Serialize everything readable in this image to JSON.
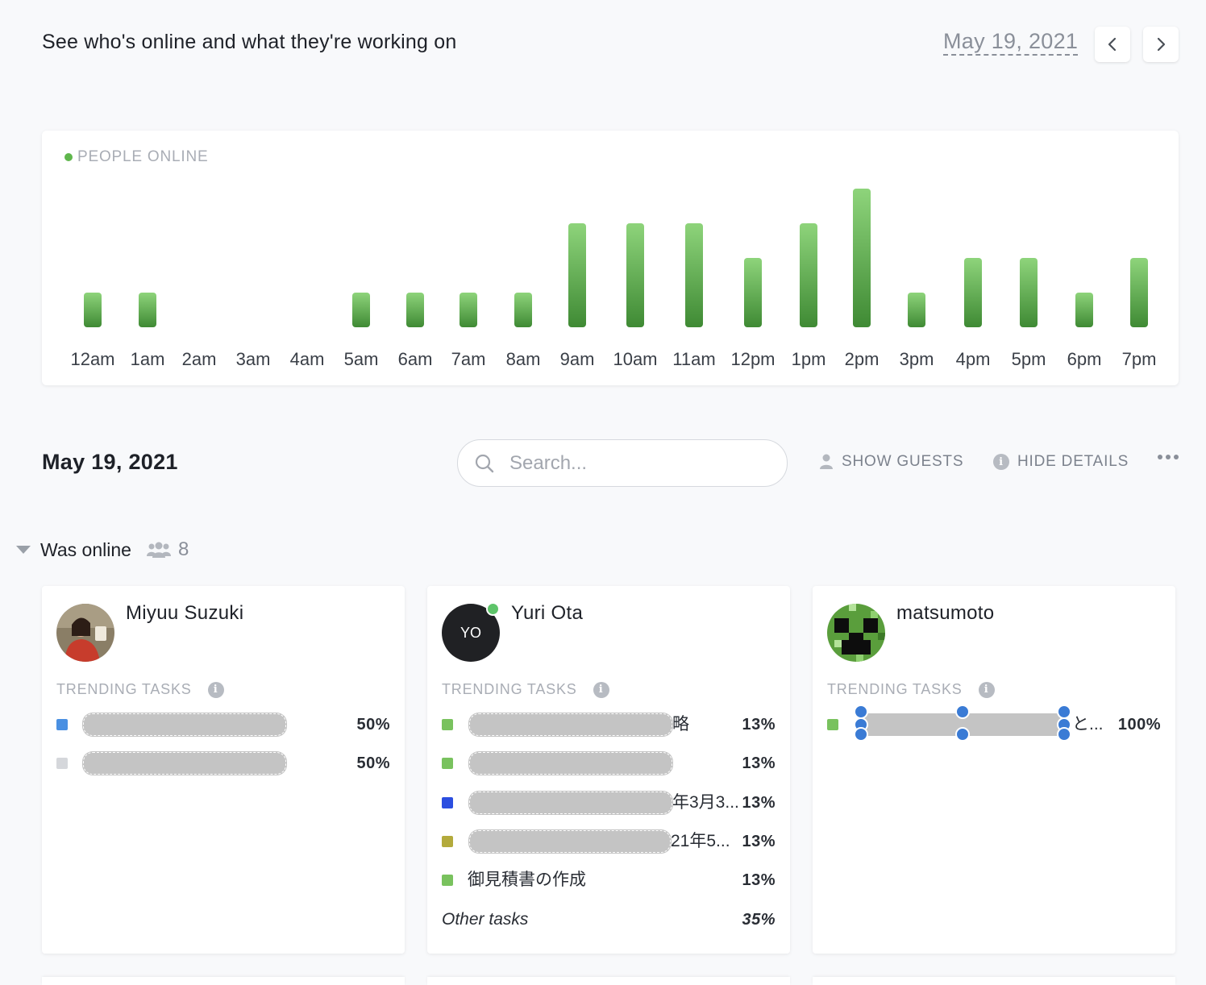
{
  "header": {
    "title": "See who's online and what they're working on",
    "date": "May 19, 2021"
  },
  "people_online_chart": {
    "title": "PEOPLE ONLINE",
    "colors": {
      "bar_top": "#8ed47b",
      "bar_bottom": "#3f8a34",
      "title_dot": "#5fb64c"
    }
  },
  "chart_data": {
    "type": "bar",
    "title": "PEOPLE ONLINE",
    "categories": [
      "12am",
      "1am",
      "2am",
      "3am",
      "4am",
      "5am",
      "6am",
      "7am",
      "8am",
      "9am",
      "10am",
      "11am",
      "12pm",
      "1pm",
      "2pm",
      "3pm",
      "4pm",
      "5pm",
      "6pm",
      "7pm"
    ],
    "values": [
      1,
      1,
      0,
      0,
      0,
      1,
      1,
      1,
      1,
      3,
      3,
      3,
      2,
      3,
      4,
      1,
      2,
      2,
      1,
      2
    ],
    "xlabel": "",
    "ylabel": "",
    "ylim": [
      0,
      4
    ],
    "grid": false
  },
  "toolbar": {
    "date": "May 19, 2021",
    "search_placeholder": "Search...",
    "show_guests": "SHOW GUESTS",
    "hide_details": "HIDE DETAILS"
  },
  "group": {
    "label": "Was online",
    "count": "8"
  },
  "cards": [
    {
      "name": "Miyuu Suzuki",
      "trending_label": "TRENDING TASKS",
      "tasks": [
        {
          "text": "",
          "pct": "50%",
          "color": "#4a90e2"
        },
        {
          "text": "",
          "pct": "50%",
          "color": "#d5d7db"
        }
      ]
    },
    {
      "name": "Yuri Ota",
      "initials": "YO",
      "online": true,
      "trending_label": "TRENDING TASKS",
      "tasks": [
        {
          "text": "略",
          "pct": "13%",
          "color": "#79c25e"
        },
        {
          "text": "",
          "pct": "13%",
          "color": "#79c25e"
        },
        {
          "text": "年3月3...",
          "pct": "13%",
          "color": "#2b4ee0"
        },
        {
          "text": "21年5...",
          "pct": "13%",
          "color": "#b3aa3c"
        },
        {
          "text": "御見積書の作成",
          "pct": "13%",
          "color": "#79c25e"
        }
      ],
      "other_label": "Other tasks",
      "other_pct": "35%"
    },
    {
      "name": "matsumoto",
      "trending_label": "TRENDING TASKS",
      "tasks": [
        {
          "text": "と...",
          "pct": "100%",
          "color": "#79c25e"
        }
      ]
    }
  ]
}
